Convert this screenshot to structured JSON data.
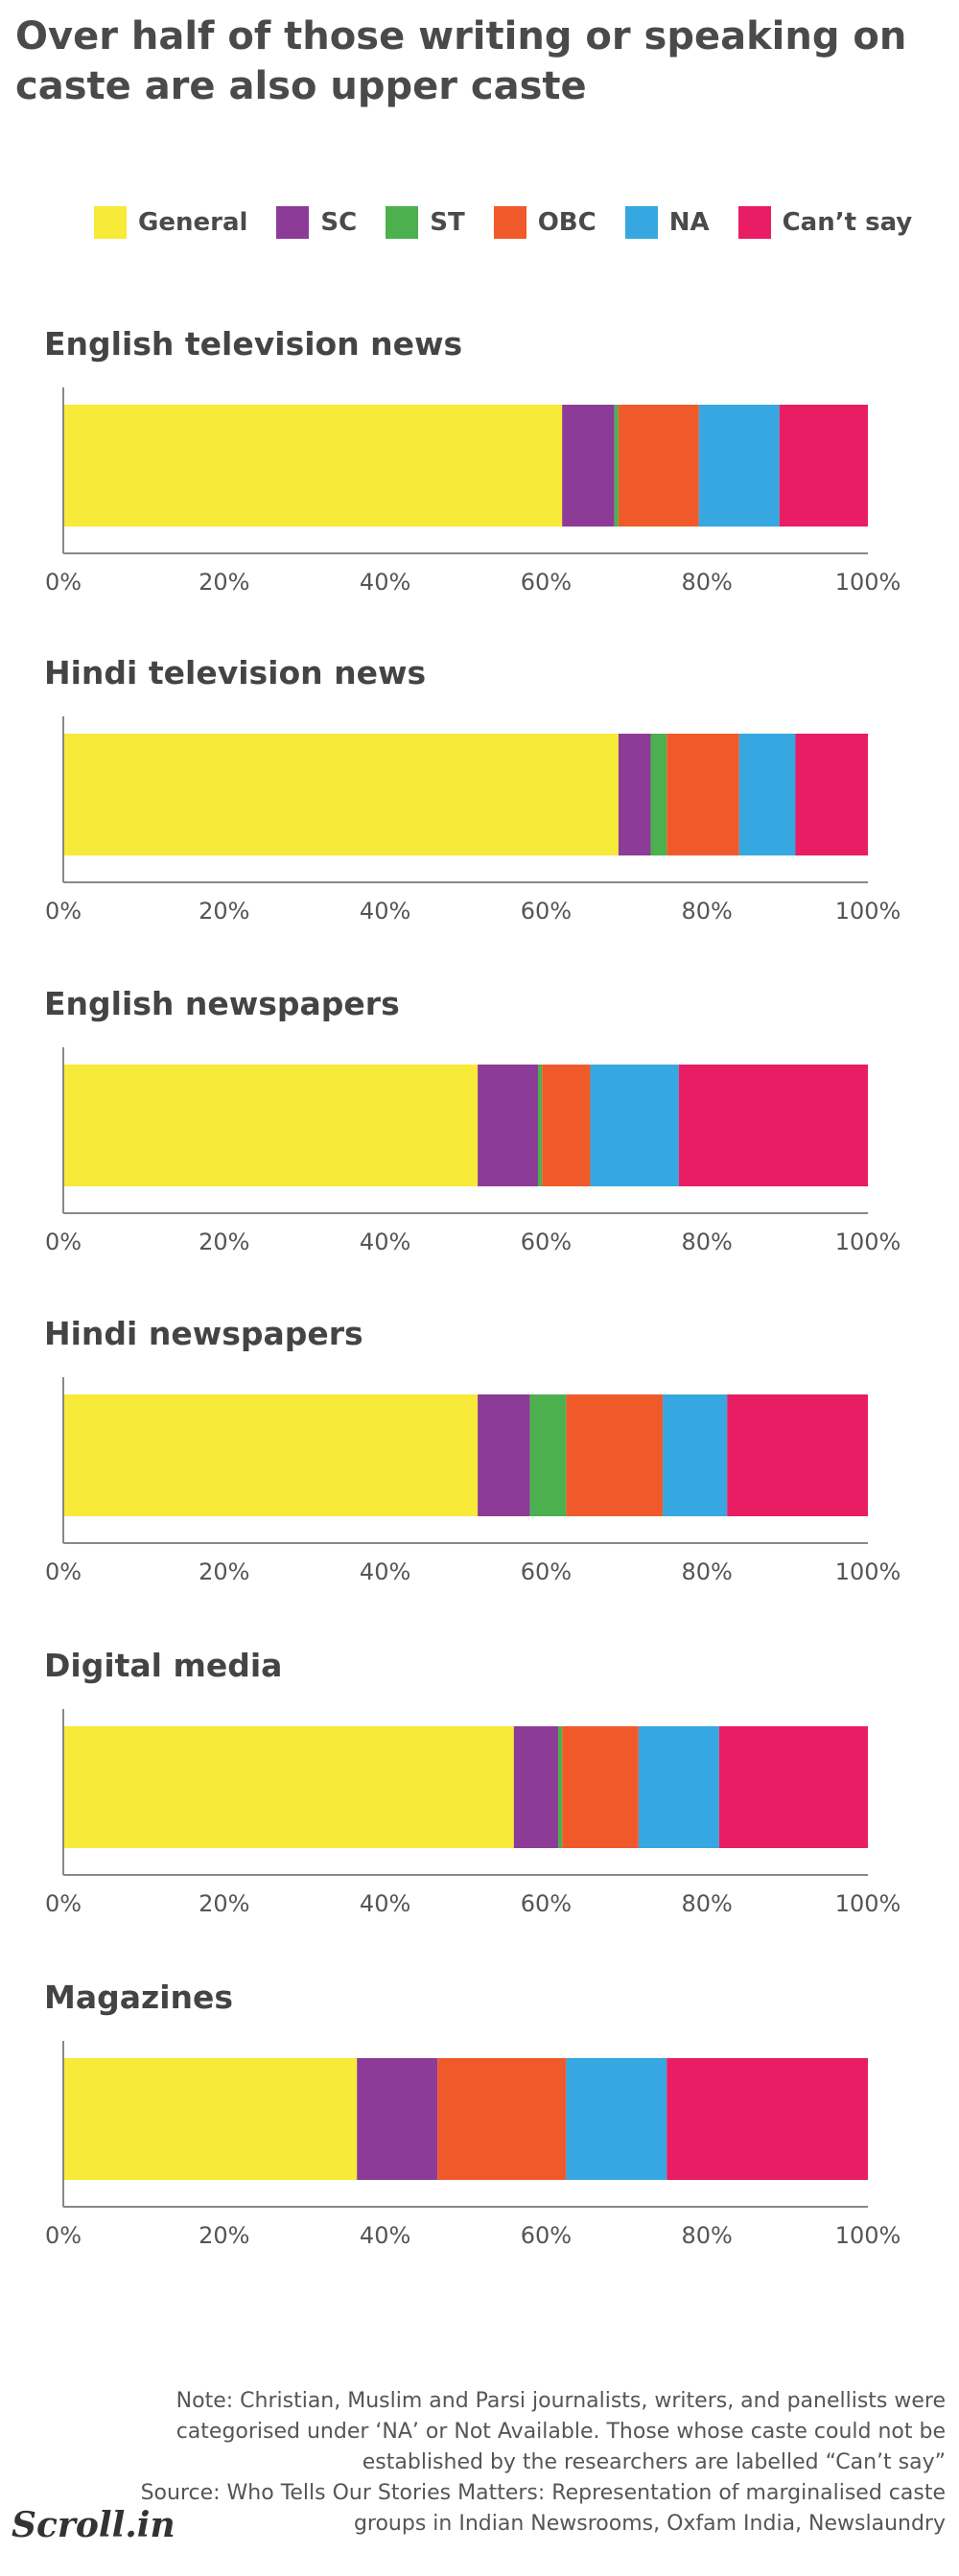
{
  "title": "Over half of those writing or speaking on caste are also upper caste",
  "legend": [
    {
      "label": "General",
      "color": "#f7ea38"
    },
    {
      "label": "SC",
      "color": "#8c3b97"
    },
    {
      "label": "ST",
      "color": "#4cb04f"
    },
    {
      "label": "OBC",
      "color": "#f05a2a"
    },
    {
      "label": "NA",
      "color": "#36a7e0"
    },
    {
      "label": "Can’t say",
      "color": "#e91d63"
    }
  ],
  "chart_data": [
    {
      "type": "bar",
      "orientation": "horizontal",
      "stacked": true,
      "title": "English television news",
      "series": [
        {
          "name": "General",
          "values": [
            62
          ]
        },
        {
          "name": "SC",
          "values": [
            6.5
          ]
        },
        {
          "name": "ST",
          "values": [
            0.5
          ]
        },
        {
          "name": "OBC",
          "values": [
            10
          ]
        },
        {
          "name": "NA",
          "values": [
            10
          ]
        },
        {
          "name": "Can’t say",
          "values": [
            11
          ]
        }
      ],
      "xlim": [
        0,
        100
      ],
      "ticks": [
        "0%",
        "20%",
        "40%",
        "60%",
        "80%",
        "100%"
      ]
    },
    {
      "type": "bar",
      "orientation": "horizontal",
      "stacked": true,
      "title": "Hindi television news",
      "series": [
        {
          "name": "General",
          "values": [
            69
          ]
        },
        {
          "name": "SC",
          "values": [
            4
          ]
        },
        {
          "name": "ST",
          "values": [
            2
          ]
        },
        {
          "name": "OBC",
          "values": [
            9
          ]
        },
        {
          "name": "NA",
          "values": [
            7
          ]
        },
        {
          "name": "Can’t say",
          "values": [
            9
          ]
        }
      ],
      "xlim": [
        0,
        100
      ],
      "ticks": [
        "0%",
        "20%",
        "40%",
        "60%",
        "80%",
        "100%"
      ]
    },
    {
      "type": "bar",
      "orientation": "horizontal",
      "stacked": true,
      "title": "English newspapers",
      "series": [
        {
          "name": "General",
          "values": [
            51.5
          ]
        },
        {
          "name": "SC",
          "values": [
            7.5
          ]
        },
        {
          "name": "ST",
          "values": [
            0.5
          ]
        },
        {
          "name": "OBC",
          "values": [
            6
          ]
        },
        {
          "name": "NA",
          "values": [
            11
          ]
        },
        {
          "name": "Can’t say",
          "values": [
            23.5
          ]
        }
      ],
      "xlim": [
        0,
        100
      ],
      "ticks": [
        "0%",
        "20%",
        "40%",
        "60%",
        "80%",
        "100%"
      ]
    },
    {
      "type": "bar",
      "orientation": "horizontal",
      "stacked": true,
      "title": "Hindi newspapers",
      "series": [
        {
          "name": "General",
          "values": [
            51.5
          ]
        },
        {
          "name": "SC",
          "values": [
            6.5
          ]
        },
        {
          "name": "ST",
          "values": [
            4.5
          ]
        },
        {
          "name": "OBC",
          "values": [
            12
          ]
        },
        {
          "name": "NA",
          "values": [
            8
          ]
        },
        {
          "name": "Can’t say",
          "values": [
            17.5
          ]
        }
      ],
      "xlim": [
        0,
        100
      ],
      "ticks": [
        "0%",
        "20%",
        "40%",
        "60%",
        "80%",
        "100%"
      ]
    },
    {
      "type": "bar",
      "orientation": "horizontal",
      "stacked": true,
      "title": "Digital media",
      "series": [
        {
          "name": "General",
          "values": [
            56
          ]
        },
        {
          "name": "SC",
          "values": [
            5.5
          ]
        },
        {
          "name": "ST",
          "values": [
            0.5
          ]
        },
        {
          "name": "OBC",
          "values": [
            9.5
          ]
        },
        {
          "name": "NA",
          "values": [
            10
          ]
        },
        {
          "name": "Can’t say",
          "values": [
            18.5
          ]
        }
      ],
      "xlim": [
        0,
        100
      ],
      "ticks": [
        "0%",
        "20%",
        "40%",
        "60%",
        "80%",
        "100%"
      ]
    },
    {
      "type": "bar",
      "orientation": "horizontal",
      "stacked": true,
      "title": "Magazines",
      "series": [
        {
          "name": "General",
          "values": [
            36.5
          ]
        },
        {
          "name": "SC",
          "values": [
            10
          ]
        },
        {
          "name": "ST",
          "values": [
            0
          ]
        },
        {
          "name": "OBC",
          "values": [
            16
          ]
        },
        {
          "name": "NA",
          "values": [
            12.5
          ]
        },
        {
          "name": "Can’t say",
          "values": [
            25
          ]
        }
      ],
      "xlim": [
        0,
        100
      ],
      "ticks": [
        "0%",
        "20%",
        "40%",
        "60%",
        "80%",
        "100%"
      ]
    }
  ],
  "footer": {
    "note": "Note: Christian, Muslim and Parsi journalists, writers, and panellists were categorised under ‘NA’ or Not Available. Those whose caste could not be established by the researchers are labelled “Can’t say”",
    "source": "Source: Who Tells Our Stories Matters: Representation of marginalised caste groups in Indian Newsrooms, Oxfam India, Newslaundry",
    "brand": "Scroll.in"
  }
}
